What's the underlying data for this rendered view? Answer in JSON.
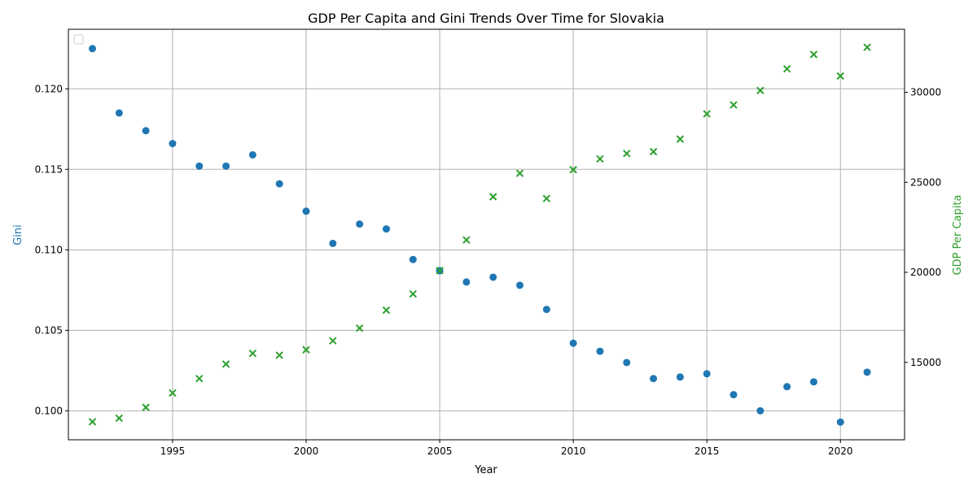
{
  "chart_data": {
    "type": "scatter",
    "title": "GDP Per Capita and Gini Trends Over Time for Slovakia",
    "xlabel": "Year",
    "ylabel_left": "Gini",
    "ylabel_right": "GDP Per Capita",
    "xlim": [
      1991.1,
      2022.4
    ],
    "ylim_left": [
      0.0982,
      0.1237
    ],
    "ylim_right": [
      10700,
      33500
    ],
    "x_ticks": [
      1995,
      2000,
      2005,
      2010,
      2015,
      2020
    ],
    "y_ticks_left": [
      0.1,
      0.105,
      0.11,
      0.115,
      0.12
    ],
    "y_ticks_right": [
      15000,
      20000,
      25000,
      30000
    ],
    "grid": true,
    "legend": "upper-left (empty)",
    "colors": {
      "gini": "#1f77b4",
      "gdp": "#2ca02c",
      "grid": "#b0b0b0"
    },
    "x": [
      1992,
      1993,
      1994,
      1995,
      1996,
      1997,
      1998,
      1999,
      2000,
      2001,
      2002,
      2003,
      2004,
      2005,
      2006,
      2007,
      2008,
      2009,
      2010,
      2011,
      2012,
      2013,
      2014,
      2015,
      2016,
      2017,
      2018,
      2019,
      2020,
      2021
    ],
    "series": [
      {
        "axis": "left",
        "marker": "circle",
        "values": [
          0.1225,
          0.1185,
          0.1174,
          0.1166,
          0.1152,
          0.1152,
          0.1159,
          0.1141,
          0.1124,
          0.1104,
          0.1116,
          0.1113,
          0.1094,
          0.1087,
          0.108,
          0.1083,
          0.1078,
          0.1063,
          0.1042,
          0.1037,
          0.103,
          0.102,
          0.1021,
          0.1023,
          0.101,
          0.1,
          0.1015,
          0.1018,
          0.0993,
          0.1024
        ]
      },
      {
        "axis": "right",
        "marker": "x",
        "values": [
          11700,
          11900,
          12500,
          13300,
          14100,
          14900,
          15500,
          15400,
          15700,
          16200,
          16900,
          17900,
          18800,
          20100,
          21800,
          24200,
          25500,
          24100,
          25700,
          26300,
          26600,
          26700,
          27400,
          28800,
          29300,
          30100,
          31300,
          32100,
          30900,
          32500
        ]
      }
    ]
  }
}
